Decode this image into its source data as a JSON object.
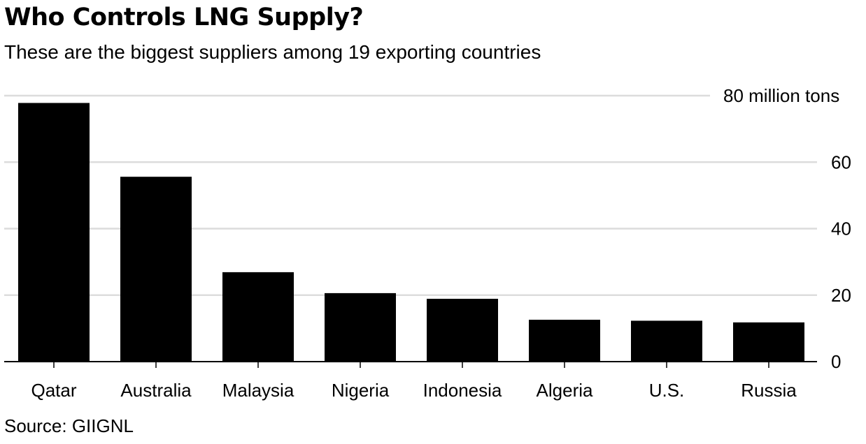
{
  "header": {
    "title": "Who Controls LNG Supply?",
    "subtitle": "These are the biggest suppliers among 19 exporting countries"
  },
  "footer": {
    "source": "Source: GIIGNL"
  },
  "colors": {
    "bar": "#000000",
    "grid": "#dcdcdc",
    "text": "#000000",
    "background": "#ffffff"
  },
  "chart_data": {
    "type": "bar",
    "title": "Who Controls LNG Supply?",
    "subtitle": "These are the biggest suppliers among 19 exporting countries",
    "categories": [
      "Qatar",
      "Australia",
      "Malaysia",
      "Nigeria",
      "Indonesia",
      "Algeria",
      "U.S.",
      "Russia"
    ],
    "values": [
      77.8,
      55.6,
      26.9,
      20.6,
      18.9,
      12.6,
      12.3,
      11.8
    ],
    "ylim": [
      0,
      80
    ],
    "yticks": [
      0,
      20,
      40,
      60,
      80
    ],
    "ytick_labels": [
      "0",
      "20",
      "40",
      "60",
      "80 million tons"
    ],
    "xlabel": "",
    "ylabel": "",
    "y_axis_position": "right",
    "grid": true,
    "legend": "none",
    "source": "Source: GIIGNL"
  }
}
